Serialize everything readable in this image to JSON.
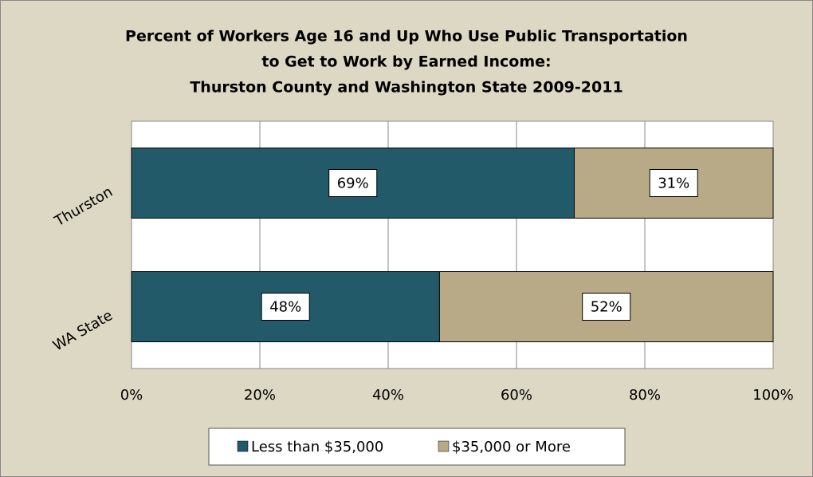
{
  "chart_data": {
    "type": "stacked-barh",
    "title": [
      "Percent of Workers Age 16 and Up Who Use Public Transportation",
      "to Get to Work by Earned Income:",
      "Thurston County and Washington State 2009-2011"
    ],
    "categories": [
      "Thurston",
      "WA State"
    ],
    "series": [
      {
        "name": "Less than $35,000",
        "color": "#235a6a",
        "values": [
          69,
          48
        ],
        "value_labels": [
          "69%",
          "48%"
        ]
      },
      {
        "name": "$35,000 or More",
        "color": "#b8aa86",
        "values": [
          31,
          52
        ],
        "value_labels": [
          "31%",
          "52%"
        ]
      }
    ],
    "xlim": [
      0,
      100
    ],
    "xticks": [
      {
        "value": 0,
        "label": "0%"
      },
      {
        "value": 20,
        "label": "20%"
      },
      {
        "value": 40,
        "label": "40%"
      },
      {
        "value": 60,
        "label": "60%"
      },
      {
        "value": 80,
        "label": "80%"
      },
      {
        "value": 100,
        "label": "100%"
      }
    ],
    "grid": true,
    "legend": "bottom"
  }
}
